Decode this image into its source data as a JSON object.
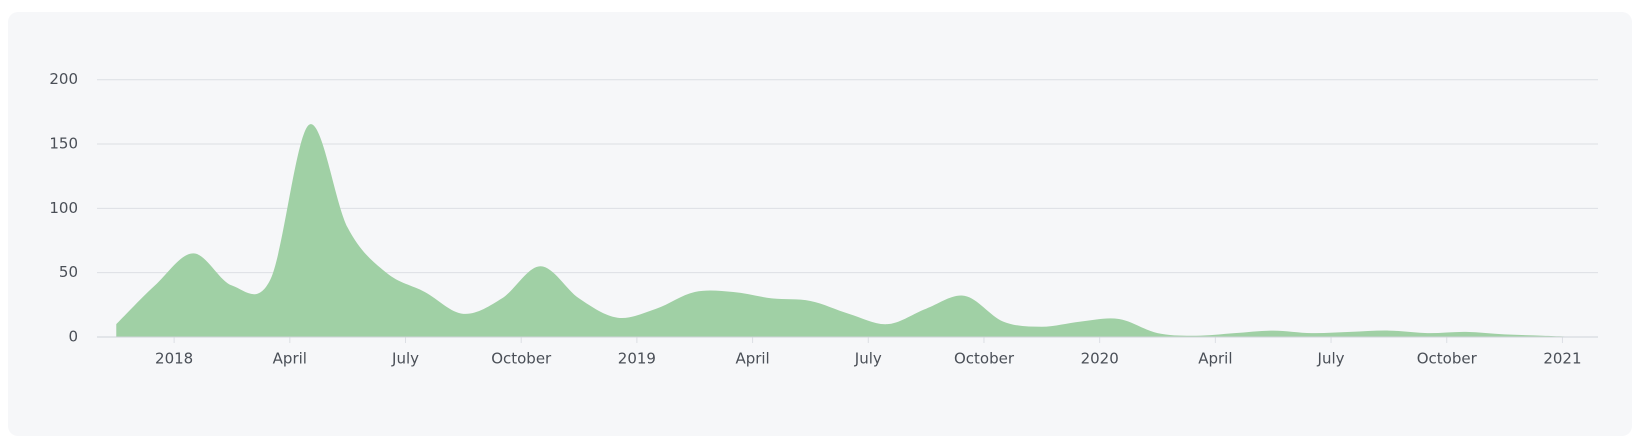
{
  "chart_data": {
    "type": "area",
    "x": [
      "2017-11",
      "2017-12",
      "2018-01",
      "2018-02",
      "2018-03",
      "2018-04",
      "2018-05",
      "2018-06",
      "2018-07",
      "2018-08",
      "2018-09",
      "2018-10",
      "2018-11",
      "2018-12",
      "2019-01",
      "2019-02",
      "2019-03",
      "2019-04",
      "2019-05",
      "2019-06",
      "2019-07",
      "2019-08",
      "2019-09",
      "2019-10",
      "2019-11",
      "2019-12",
      "2020-01",
      "2020-02",
      "2020-03",
      "2020-04",
      "2020-05",
      "2020-06",
      "2020-07",
      "2020-08",
      "2020-09",
      "2020-10",
      "2020-11",
      "2020-12",
      "2021-01"
    ],
    "values": [
      10,
      40,
      65,
      40,
      45,
      165,
      85,
      50,
      35,
      18,
      30,
      55,
      30,
      15,
      22,
      35,
      35,
      30,
      28,
      18,
      10,
      22,
      32,
      12,
      8,
      12,
      14,
      3,
      1,
      3,
      5,
      3,
      4,
      5,
      3,
      4,
      2,
      1,
      0
    ],
    "color": "#a0d0a5",
    "xlim": [
      "2017-11",
      "2021-02"
    ],
    "xticks": [
      {
        "value": "2018-01",
        "label": "2018"
      },
      {
        "value": "2018-04",
        "label": "April"
      },
      {
        "value": "2018-07",
        "label": "July"
      },
      {
        "value": "2018-10",
        "label": "October"
      },
      {
        "value": "2019-01",
        "label": "2019"
      },
      {
        "value": "2019-04",
        "label": "April"
      },
      {
        "value": "2019-07",
        "label": "July"
      },
      {
        "value": "2019-10",
        "label": "October"
      },
      {
        "value": "2020-01",
        "label": "2020"
      },
      {
        "value": "2020-04",
        "label": "April"
      },
      {
        "value": "2020-07",
        "label": "July"
      },
      {
        "value": "2020-10",
        "label": "October"
      },
      {
        "value": "2021-01",
        "label": "2021"
      }
    ],
    "ylim": [
      0,
      220
    ],
    "yticks": [
      0,
      50,
      100,
      150,
      200
    ],
    "grid": true
  }
}
